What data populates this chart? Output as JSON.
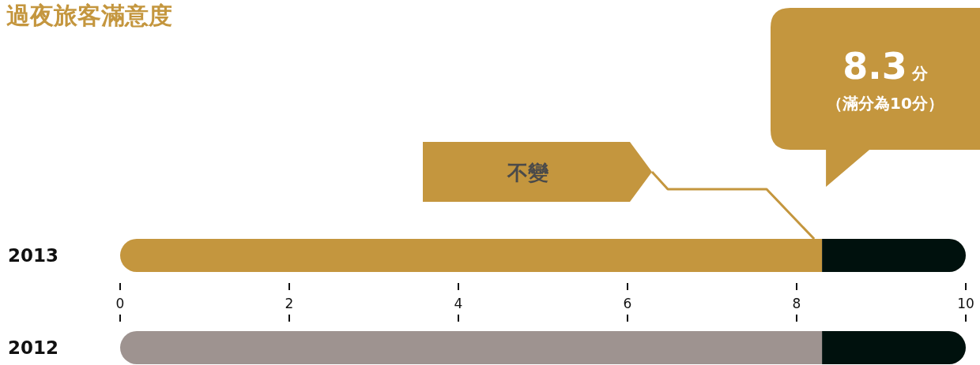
{
  "chart_data": {
    "type": "bar",
    "orientation": "horizontal",
    "stacked": true,
    "title": "過夜旅客滿意度",
    "categories": [
      "2013",
      "2012"
    ],
    "series": [
      {
        "colors": [
          "#c4963e",
          "#9e9390"
        ],
        "values": [
          8.3,
          8.3
        ]
      },
      {
        "color": "#00110d",
        "values": [
          1.7,
          1.7
        ]
      }
    ],
    "xlim": [
      0,
      10
    ],
    "xticks": [
      0,
      2,
      4,
      6,
      8,
      10
    ],
    "grid": false,
    "annotations": [
      "8.3分",
      "（滿分為10分）",
      "不變"
    ]
  }
}
